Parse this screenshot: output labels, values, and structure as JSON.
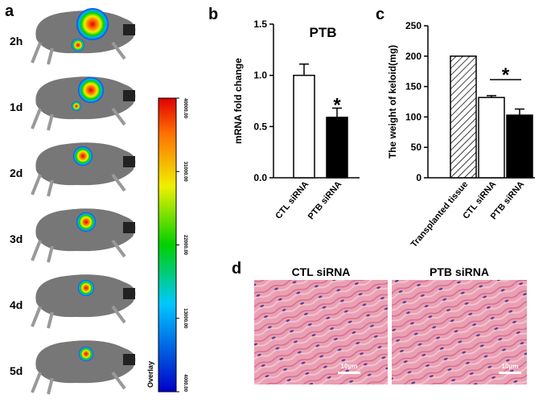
{
  "figure": {
    "panel_labels": [
      "a",
      "b",
      "c",
      "d"
    ],
    "time_points": [
      "2h",
      "1d",
      "2d",
      "3d",
      "4d",
      "5d"
    ],
    "colorbar": {
      "label": "Overlay",
      "lim": [
        4000,
        40000
      ],
      "ticks": [
        {
          "value": 40000,
          "label": "40000.00"
        },
        {
          "value": 31000,
          "label": "31000.00"
        },
        {
          "value": 22000,
          "label": "22000.00"
        },
        {
          "value": 13000,
          "label": "13000.00"
        },
        {
          "value": 4000,
          "label": "4000.00"
        }
      ]
    },
    "histology": {
      "titles": [
        "CTL siRNA",
        "PTB siRNA"
      ],
      "scale_bar": "10μm"
    }
  },
  "chart_data": [
    {
      "type": "bar",
      "title": "PTB",
      "y_label": "mRNA fold change",
      "categories": [
        "CTL siRNA",
        "PTB siRNA"
      ],
      "values": [
        1.0,
        0.59
      ],
      "errors": [
        0.11,
        0.09
      ],
      "colors": [
        "#ffffff",
        "#000000"
      ],
      "ylim": [
        0,
        1.5
      ],
      "yticks": [
        {
          "value": 0,
          "label": "0.0"
        },
        {
          "value": 0.5,
          "label": "0.5"
        },
        {
          "value": 1,
          "label": "1.0"
        },
        {
          "value": 1.5,
          "label": "1.5"
        }
      ],
      "annotations": [
        "*"
      ]
    },
    {
      "type": "bar",
      "y_label": "The weight of keloid(mg)",
      "categories": [
        "Transplanted tissue",
        "CTL siRNA",
        "PTB siRNA"
      ],
      "values": [
        200,
        132,
        103
      ],
      "errors": [
        null,
        3,
        10
      ],
      "colors": [
        "hatch",
        "#ffffff",
        "#000000"
      ],
      "ylim": [
        0,
        250
      ],
      "yticks": [
        0,
        50,
        100,
        150,
        200,
        250
      ],
      "annotations": [
        "*"
      ]
    }
  ]
}
